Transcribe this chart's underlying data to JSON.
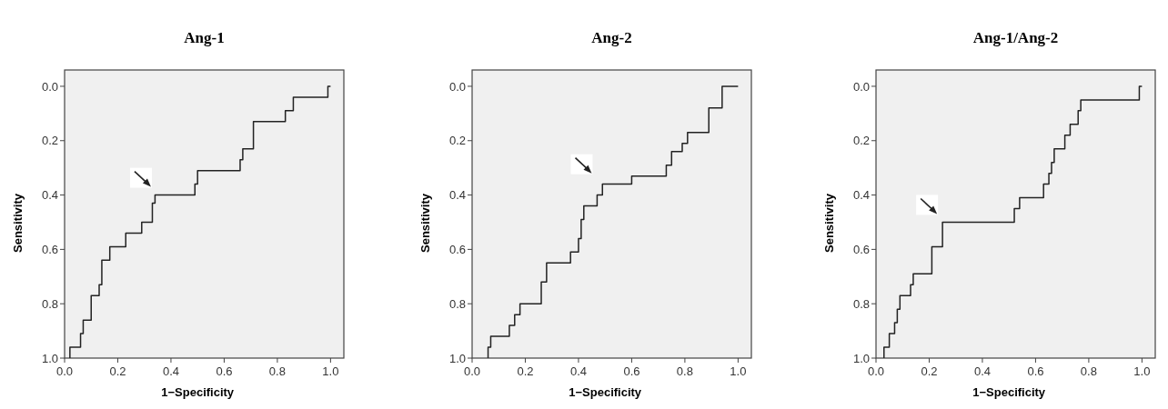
{
  "chart_data": [
    {
      "type": "line",
      "title": "Ang-1",
      "xlabel": "1−Specificity",
      "ylabel": "Sensitivity",
      "xlim": [
        0,
        1.05
      ],
      "ylim": [
        1.0,
        -0.06
      ],
      "marker": "none",
      "xticks": [
        {
          "value": 0,
          "label": "0.0"
        },
        {
          "value": 0.2,
          "label": "0.2"
        },
        {
          "value": 0.4,
          "label": "0.4"
        },
        {
          "value": 0.6,
          "label": "0.6"
        },
        {
          "value": 0.8,
          "label": "0.8"
        },
        {
          "value": 1,
          "label": "1.0"
        }
      ],
      "yticks": [
        {
          "value": 0,
          "label": "0.0"
        },
        {
          "value": 0.2,
          "label": "0.2"
        },
        {
          "value": 0.4,
          "label": "0.4"
        },
        {
          "value": 0.6,
          "label": "0.6"
        },
        {
          "value": 0.8,
          "label": "0.8"
        },
        {
          "value": 1,
          "label": "1.0"
        }
      ],
      "grid": false,
      "line_style": "solid",
      "series": [
        {
          "color": "#222222",
          "x": [
            0.02,
            0.02,
            0.06,
            0.06,
            0.07,
            0.07,
            0.1,
            0.1,
            0.13,
            0.13,
            0.14,
            0.14,
            0.17,
            0.17,
            0.23,
            0.23,
            0.29,
            0.29,
            0.33,
            0.33,
            0.34,
            0.34,
            0.49,
            0.49,
            0.5,
            0.5,
            0.66,
            0.66,
            0.67,
            0.67,
            0.71,
            0.71,
            0.71,
            0.71,
            0.83,
            0.83,
            0.86,
            0.86,
            0.99,
            0.99,
            1.0
          ],
          "values": [
            1.0,
            0.96,
            0.96,
            0.91,
            0.91,
            0.86,
            0.86,
            0.77,
            0.77,
            0.73,
            0.73,
            0.64,
            0.64,
            0.59,
            0.59,
            0.54,
            0.54,
            0.5,
            0.5,
            0.43,
            0.43,
            0.4,
            0.4,
            0.36,
            0.36,
            0.31,
            0.31,
            0.27,
            0.27,
            0.23,
            0.23,
            0.18,
            0.18,
            0.13,
            0.13,
            0.09,
            0.09,
            0.04,
            0.04,
            0.0,
            0.0
          ]
        }
      ]
    },
    {
      "type": "line",
      "title": "Ang-2",
      "xlabel": "1−Specificity",
      "ylabel": "Sensitivity",
      "xlim": [
        0,
        1.05
      ],
      "ylim": [
        1.0,
        -0.06
      ],
      "xticks": [
        {
          "value": 0,
          "label": "0.0"
        },
        {
          "value": 0.2,
          "label": "0.2"
        },
        {
          "value": 0.4,
          "label": "0.4"
        },
        {
          "value": 0.6,
          "label": "0.6"
        },
        {
          "value": 0.8,
          "label": "0.8"
        },
        {
          "value": 1,
          "label": "1.0"
        }
      ],
      "yticks": [
        {
          "value": 0,
          "label": "0.0"
        },
        {
          "value": 0.2,
          "label": "0.2"
        },
        {
          "value": 0.4,
          "label": "0.4"
        },
        {
          "value": 0.6,
          "label": "0.6"
        },
        {
          "value": 0.8,
          "label": "0.8"
        },
        {
          "value": 1,
          "label": "1.0"
        }
      ],
      "grid": false,
      "marker": "none",
      "line_style": "solid",
      "series": [
        {
          "color": "#222222",
          "x": [
            0.06,
            0.06,
            0.07,
            0.07,
            0.14,
            0.14,
            0.16,
            0.16,
            0.18,
            0.18,
            0.26,
            0.26,
            0.26,
            0.26,
            0.28,
            0.28,
            0.37,
            0.37,
            0.4,
            0.4,
            0.41,
            0.41,
            0.42,
            0.42,
            0.47,
            0.47,
            0.49,
            0.49,
            0.6,
            0.6,
            0.73,
            0.73,
            0.75,
            0.75,
            0.79,
            0.79,
            0.81,
            0.81,
            0.89,
            0.89,
            0.94,
            0.94,
            0.94,
            0.94,
            1.0
          ],
          "values": [
            1.0,
            0.96,
            0.96,
            0.92,
            0.92,
            0.88,
            0.88,
            0.84,
            0.84,
            0.8,
            0.8,
            0.76,
            0.76,
            0.72,
            0.72,
            0.65,
            0.65,
            0.61,
            0.61,
            0.56,
            0.56,
            0.49,
            0.49,
            0.44,
            0.44,
            0.4,
            0.4,
            0.36,
            0.36,
            0.33,
            0.33,
            0.29,
            0.29,
            0.24,
            0.24,
            0.21,
            0.21,
            0.17,
            0.17,
            0.08,
            0.08,
            0.04,
            0.04,
            0.0,
            0.0
          ]
        }
      ]
    },
    {
      "type": "line",
      "title": "Ang-1/Ang-2",
      "xlabel": "1−Specificity",
      "ylabel": "Sensitivity",
      "xlim": [
        0,
        1.05
      ],
      "ylim": [
        1.0,
        -0.06
      ],
      "xticks": [
        {
          "value": 0,
          "label": "0.0"
        },
        {
          "value": 0.2,
          "label": "0.2"
        },
        {
          "value": 0.4,
          "label": "0.4"
        },
        {
          "value": 0.6,
          "label": "0.6"
        },
        {
          "value": 0.8,
          "label": "0.8"
        },
        {
          "value": 1,
          "label": "1.0"
        }
      ],
      "yticks": [
        {
          "value": 0,
          "label": "0.0"
        },
        {
          "value": 0.2,
          "label": "0.2"
        },
        {
          "value": 0.4,
          "label": "0.4"
        },
        {
          "value": 0.6,
          "label": "0.6"
        },
        {
          "value": 0.8,
          "label": "0.8"
        },
        {
          "value": 1,
          "label": "1.0"
        }
      ],
      "grid": false,
      "marker": "none",
      "line_style": "solid",
      "series": [
        {
          "color": "#222222",
          "x": [
            0.03,
            0.03,
            0.05,
            0.05,
            0.07,
            0.07,
            0.08,
            0.08,
            0.09,
            0.09,
            0.13,
            0.13,
            0.14,
            0.14,
            0.21,
            0.21,
            0.25,
            0.25,
            0.52,
            0.52,
            0.54,
            0.54,
            0.63,
            0.63,
            0.65,
            0.65,
            0.66,
            0.66,
            0.67,
            0.67,
            0.71,
            0.71,
            0.73,
            0.73,
            0.76,
            0.76,
            0.77,
            0.77,
            0.99,
            0.99,
            1.0
          ],
          "values": [
            1.0,
            0.96,
            0.96,
            0.91,
            0.91,
            0.87,
            0.87,
            0.82,
            0.82,
            0.77,
            0.77,
            0.73,
            0.73,
            0.69,
            0.69,
            0.59,
            0.59,
            0.5,
            0.5,
            0.45,
            0.45,
            0.41,
            0.41,
            0.36,
            0.36,
            0.32,
            0.32,
            0.28,
            0.28,
            0.23,
            0.23,
            0.18,
            0.18,
            0.14,
            0.14,
            0.09,
            0.09,
            0.05,
            0.05,
            0.0,
            0.0
          ]
        }
      ]
    }
  ]
}
